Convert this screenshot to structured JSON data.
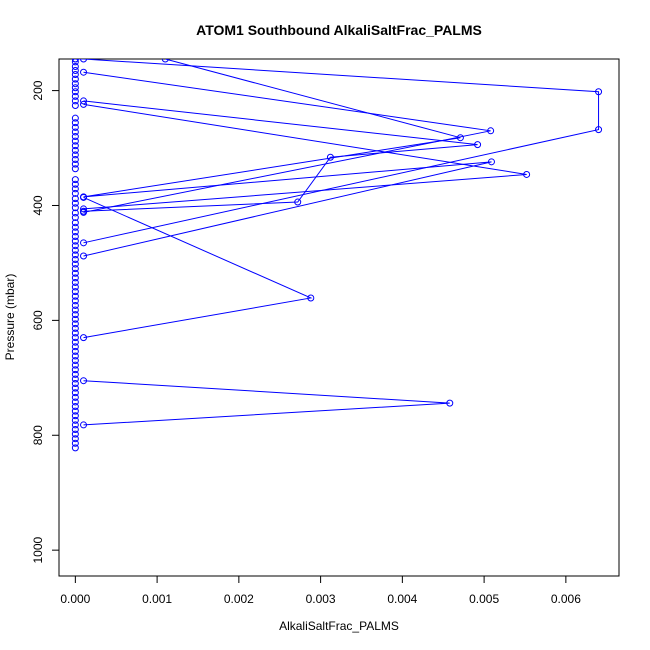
{
  "chart_data": {
    "type": "line",
    "title": "ATOM1 Southbound AlkaliSaltFrac_PALMS",
    "xlabel": "AlkaliSaltFrac_PALMS",
    "ylabel": "Pressure (mbar)",
    "xlim": [
      -0.0002,
      0.00665
    ],
    "ylim": [
      1045,
      145
    ],
    "y_reversed": true,
    "x_ticks": [
      0.0,
      0.001,
      0.002,
      0.003,
      0.004,
      0.005,
      0.006
    ],
    "x_tick_labels": [
      "0.000",
      "0.001",
      "0.002",
      "0.003",
      "0.004",
      "0.005",
      "0.006"
    ],
    "y_ticks": [
      200,
      400,
      600,
      800,
      1000
    ],
    "y_tick_labels": [
      "200",
      "400",
      "600",
      "800",
      "1000"
    ],
    "color": "#0000ff",
    "grid": false,
    "series": [
      {
        "points": [
          [
            0.0,
            145
          ],
          [
            0.0,
            150
          ],
          [
            0.0,
            158
          ],
          [
            0.0,
            165
          ],
          [
            0.0,
            172
          ],
          [
            0.0,
            180
          ],
          [
            0.0,
            188
          ],
          [
            0.0,
            195
          ],
          [
            0.0,
            202
          ],
          [
            0.0,
            210
          ],
          [
            0.0,
            218
          ],
          [
            0.0,
            226
          ],
          [
            0.0,
            248
          ],
          [
            0.0,
            256
          ],
          [
            0.0,
            264
          ],
          [
            0.0,
            272
          ],
          [
            0.0,
            280
          ],
          [
            0.0,
            288
          ],
          [
            0.0,
            296
          ],
          [
            0.0,
            304
          ],
          [
            0.0,
            312
          ],
          [
            0.0,
            320
          ],
          [
            0.0,
            328
          ],
          [
            0.0,
            336
          ],
          [
            0.0,
            355
          ],
          [
            0.0,
            363
          ],
          [
            0.0,
            371
          ],
          [
            0.0,
            379
          ],
          [
            0.0,
            388
          ],
          [
            0.0,
            396
          ],
          [
            0.0,
            404
          ],
          [
            0.0,
            413
          ],
          [
            0.0,
            421
          ],
          [
            0.0,
            430
          ],
          [
            0.0,
            438
          ],
          [
            0.0,
            446
          ],
          [
            0.0,
            454
          ],
          [
            0.0,
            462
          ],
          [
            0.0,
            470
          ],
          [
            0.0,
            478
          ],
          [
            0.0,
            486
          ],
          [
            0.0,
            494
          ],
          [
            0.0,
            502
          ],
          [
            0.0,
            510
          ],
          [
            0.0,
            518
          ],
          [
            0.0,
            526
          ],
          [
            0.0,
            534
          ],
          [
            0.0,
            542
          ],
          [
            0.0,
            550
          ],
          [
            0.0,
            558
          ],
          [
            0.0,
            566
          ],
          [
            0.0,
            574
          ],
          [
            0.0,
            582
          ],
          [
            0.0,
            590
          ],
          [
            0.0,
            598
          ],
          [
            0.0,
            606
          ],
          [
            0.0,
            614
          ],
          [
            0.0,
            622
          ],
          [
            0.0,
            630
          ],
          [
            0.0,
            638
          ],
          [
            0.0,
            646
          ],
          [
            0.0,
            654
          ],
          [
            0.0,
            662
          ],
          [
            0.0,
            670
          ],
          [
            0.0,
            678
          ],
          [
            0.0,
            686
          ],
          [
            0.0,
            694
          ],
          [
            0.0,
            702
          ],
          [
            0.0,
            710
          ],
          [
            0.0,
            718
          ],
          [
            0.0,
            726
          ],
          [
            0.0,
            734
          ],
          [
            0.0,
            742
          ],
          [
            0.0,
            750
          ],
          [
            0.0,
            758
          ],
          [
            0.0,
            766
          ],
          [
            0.0,
            774
          ],
          [
            0.0,
            782
          ],
          [
            0.0,
            790
          ],
          [
            0.0,
            798
          ],
          [
            0.0,
            806
          ],
          [
            0.0,
            814
          ],
          [
            0.0,
            822
          ]
        ],
        "draw_line": false
      },
      {
        "points": [
          [
            0.0,
            145
          ],
          [
            0.0001,
            145
          ],
          [
            0.0064,
            202
          ],
          [
            0.0064,
            268
          ],
          [
            0.0001,
            465
          ]
        ],
        "draw_line": true
      },
      {
        "points": [
          [
            0.0001,
            168
          ],
          [
            0.00508,
            270
          ],
          [
            0.0001,
            412
          ]
        ],
        "draw_line": true
      },
      {
        "points": [
          [
            0.0011,
            145
          ],
          [
            0.00471,
            282
          ],
          [
            0.0001,
            385
          ],
          [
            0.00509,
            324
          ],
          [
            0.0001,
            488
          ]
        ],
        "draw_line": true
      },
      {
        "points": [
          [
            0.0001,
            218
          ],
          [
            0.00492,
            294
          ],
          [
            0.00312,
            316
          ],
          [
            0.00272,
            394
          ],
          [
            0.0001,
            410
          ]
        ],
        "draw_line": true
      },
      {
        "points": [
          [
            0.0001,
            224
          ],
          [
            0.00552,
            346
          ],
          [
            0.0001,
            406
          ]
        ],
        "draw_line": true
      },
      {
        "points": [
          [
            0.0001,
            386
          ],
          [
            0.00288,
            561
          ],
          [
            0.0001,
            630
          ]
        ],
        "draw_line": true
      },
      {
        "points": [
          [
            0.0001,
            705
          ],
          [
            0.00458,
            744
          ],
          [
            0.0001,
            782
          ]
        ],
        "draw_line": true
      }
    ]
  }
}
